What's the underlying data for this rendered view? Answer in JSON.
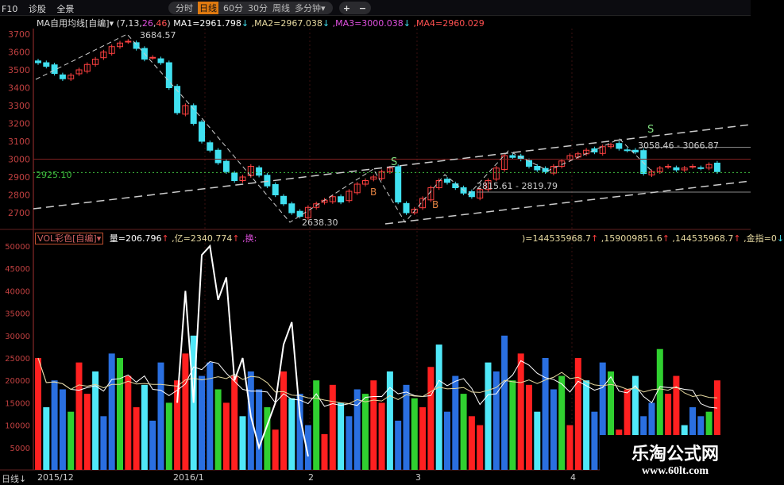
{
  "topbar": {
    "left": [
      "F10",
      "诊股",
      "全景"
    ],
    "tabs": [
      "分时",
      "日线",
      "60分",
      "30分",
      "周线",
      "多分钟▾"
    ],
    "active_tab": "日线",
    "plus": "+",
    "minus": "−"
  },
  "ma_header": {
    "name": "MA自用均线[自编]▾",
    "params_prefix": "(7,13,",
    "p3": "26",
    "sep": ",",
    "p4": "46",
    "params_suffix": ")",
    "ma1": "MA1=2961.798",
    "ma2": ",MA2=2967.038",
    "ma3": ",MA3=3000.038",
    "ma4": ",MA4=2960.029",
    "arrow": "↓"
  },
  "vol_header": {
    "name": "VOL彩色[自编]▾",
    "v1": "量=206.796",
    "v2": ",亿=2340.774",
    "v3": ",换:",
    "arrow": "↑"
  },
  "vol_header_right": {
    "v1": ")=144535968.7",
    "v2": ",159009851.6",
    "v3": ",144535968.7",
    "v4": ",金指=0",
    "up": "↑",
    "down": "↓"
  },
  "colors": {
    "up": "#ff4040",
    "down": "#40e0f0",
    "ma_white": "#dddddd",
    "ma_yellow": "#e6d9a0",
    "ma_pink": "#e050e0",
    "ma_red": "#ff5050",
    "axis": "#c04040"
  },
  "price_axis": {
    "ticks": [
      3700,
      3600,
      3500,
      3400,
      3300,
      3200,
      3100,
      3000,
      2900,
      2800,
      2700
    ]
  },
  "volume_axis": {
    "ticks": [
      50000,
      45000,
      40000,
      35000,
      30000,
      25000,
      20000,
      15000,
      10000,
      5000
    ]
  },
  "x_labels": [
    "2015/12",
    "2016/1",
    "2",
    "3",
    "4"
  ],
  "bottom_left": "日线↓",
  "annotations": {
    "high": "3684.57",
    "low": "2638.30",
    "range1": "2815.61 - 2819.79",
    "range2": "3058.46 - 3066.87",
    "level": "2925.10",
    "sell": "S",
    "buy": "B"
  },
  "levels": {
    "dotted": 2925.1,
    "upper": 3066.87,
    "lower": 2815.61,
    "red": 3000
  },
  "chart_data": {
    "type": "candlestick",
    "close": [
      3540,
      3520,
      3480,
      3450,
      3470,
      3500,
      3530,
      3560,
      3600,
      3630,
      3650,
      3660,
      3620,
      3560,
      3570,
      3540,
      3400,
      3260,
      3300,
      3200,
      3100,
      3050,
      2980,
      2930,
      2880,
      2900,
      2960,
      2910,
      2850,
      2800,
      2750,
      2700,
      2680,
      2730,
      2750,
      2770,
      2790,
      2760,
      2820,
      2860,
      2880,
      2900,
      2930,
      2950,
      2760,
      2700,
      2720,
      2780,
      2840,
      2880,
      2870,
      2840,
      2810,
      2790,
      2830,
      2880,
      2950,
      3020,
      3010,
      3000,
      2960,
      2940,
      2930,
      2960,
      2990,
      3020,
      3030,
      3050,
      3040,
      3070,
      3080,
      3060,
      3050,
      3040,
      2920,
      2930,
      2950,
      2960,
      2940,
      2950,
      2960,
      2950,
      2970,
      2930
    ],
    "volume": [
      25000,
      14000,
      20000,
      18000,
      13000,
      24000,
      17000,
      22000,
      12000,
      26000,
      25000,
      21000,
      14000,
      19000,
      11000,
      24000,
      15000,
      20000,
      26000,
      30000,
      21000,
      24000,
      18000,
      15000,
      21000,
      12000,
      22000,
      18000,
      14000,
      9000,
      22000,
      16000,
      17000,
      10000,
      20000,
      8000,
      19000,
      15000,
      12000,
      18000,
      17000,
      20000,
      15000,
      22000,
      11000,
      19000,
      16000,
      14000,
      23000,
      28000,
      13000,
      21000,
      17000,
      12000,
      10000,
      24000,
      22000,
      30000,
      20000,
      26000,
      19000,
      13000,
      25000,
      18000,
      21000,
      10000,
      25000,
      20000,
      13000,
      24000,
      22000,
      9000,
      18000,
      21000,
      12000,
      15000,
      27000,
      17000,
      21000,
      10000,
      14000,
      12000,
      13000,
      20000
    ],
    "volume_colors": [
      "#ff2020",
      "#30d030",
      "#2a6fe0",
      "#50e8f8"
    ],
    "white_line": [
      {
        "i": 17,
        "v": 15000
      },
      {
        "i": 18,
        "v": 40000
      },
      {
        "i": 19,
        "v": 15000
      },
      {
        "i": 20,
        "v": 48000
      },
      {
        "i": 21,
        "v": 50000
      },
      {
        "i": 22,
        "v": 38000
      },
      {
        "i": 23,
        "v": 43000
      },
      {
        "i": 24,
        "v": 20000
      },
      {
        "i": 25,
        "v": 25000
      },
      {
        "i": 26,
        "v": 12000
      },
      {
        "i": 27,
        "v": 5000
      },
      {
        "i": 28,
        "v": 10000
      },
      {
        "i": 29,
        "v": 15000
      },
      {
        "i": 30,
        "v": 28000
      },
      {
        "i": 31,
        "v": 33000
      },
      {
        "i": 32,
        "v": 12000
      },
      {
        "i": 33,
        "v": 3000
      }
    ],
    "ylim": [
      2600,
      3760
    ]
  },
  "watermark": {
    "title": "乐淘公式网",
    "url": "www.60lt.com"
  }
}
